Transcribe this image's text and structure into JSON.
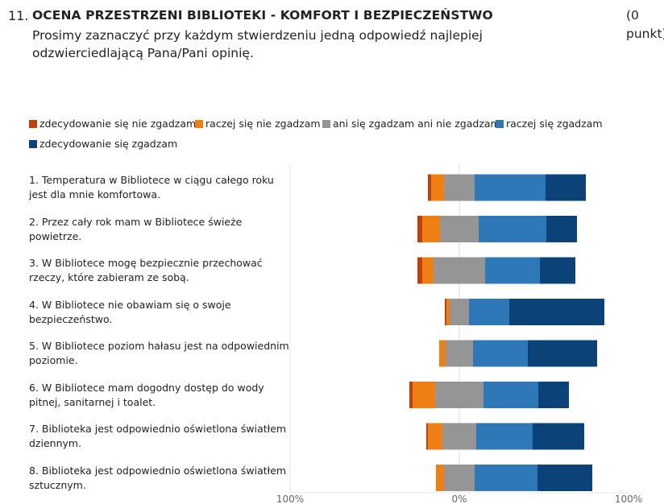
{
  "question": {
    "number": "11.",
    "title": "OCENA PRZESTRZENI BIBLIOTEKI - KOMFORT I BEZPIECZEŃSTWO",
    "points_line1": "(0",
    "points_line2": "punkt)",
    "description": "Prosimy zaznaczyć przy każdym stwierdzeniu jedną odpowiedź najlepiej odzwierciedlającą Pana/Pani opinię."
  },
  "chart_data": {
    "type": "bar",
    "orientation": "horizontal",
    "stacked": "diverging",
    "categories": [
      "1. Temperatura w Bibliotece w ciągu całego roku jest dla mnie komfortowa.",
      "2. Przez cały rok mam w Bibliotece świeże powietrze.",
      "3. W Bibliotece mogę bezpiecznie przechować rzeczy, które zabieram ze sobą.",
      "4. W Bibliotece nie obawiam się o swoje bezpieczeństwo.",
      "5. W Bibliotece poziom hałasu jest na odpowiednim poziomie.",
      "6.  W Bibliotece mam dogodny dostęp do wody pitnej, sanitarnej i toalet.",
      "7. Biblioteka jest odpowiednio oświetlona światłem dziennym.",
      "8. Biblioteka jest odpowiednio oświetlona światłem sztucznym."
    ],
    "series": [
      {
        "name": "zdecydowanie się nie zgadzam",
        "color": "#C0410E",
        "values": [
          2,
          3,
          3,
          1,
          0,
          2,
          1,
          0
        ]
      },
      {
        "name": "raczej się nie zgadzam",
        "color": "#F07F13",
        "values": [
          8,
          11,
          7,
          2,
          4,
          14,
          9,
          5
        ]
      },
      {
        "name": "ani się zgadzam ani nie zgadzam",
        "color": "#959595",
        "values": [
          19,
          24,
          32,
          12,
          17,
          30,
          21,
          19
        ]
      },
      {
        "name": "raczej się zgadzam",
        "color": "#2E78B7",
        "values": [
          44,
          42,
          34,
          25,
          34,
          34,
          35,
          39
        ]
      },
      {
        "name": "zdecydowanie się zgadzam",
        "color": "#0B4379",
        "values": [
          25,
          19,
          22,
          59,
          43,
          19,
          32,
          34
        ]
      }
    ],
    "xlim": [
      -100,
      100
    ],
    "x_tick_labels": [
      "100%",
      "0%",
      "100%"
    ],
    "legend_position": "top",
    "grid": false
  }
}
